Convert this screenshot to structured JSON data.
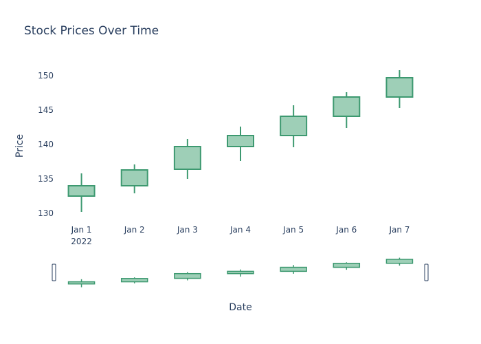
{
  "chart_data": {
    "type": "candlestick",
    "title": "Stock Prices Over Time",
    "xlabel": "Date",
    "ylabel": "Price",
    "ylim": [
      129,
      153
    ],
    "yticks": [
      130,
      135,
      140,
      145,
      150
    ],
    "x_tick_labels": [
      "Jan 1",
      "Jan 2",
      "Jan 3",
      "Jan 4",
      "Jan 5",
      "Jan 6",
      "Jan 7"
    ],
    "x_year_label": "2022",
    "grid": false,
    "range_slider": true,
    "colors": {
      "increasing_line": "#3d9970",
      "increasing_fill": "#9ecfb7",
      "text": "#2a3f5f",
      "background": "#ffffff"
    },
    "series": [
      {
        "type": "ohlc",
        "points": [
          {
            "x": "2022-01-01",
            "open": 132.5,
            "high": 135.8,
            "low": 130.2,
            "close": 134.0
          },
          {
            "x": "2022-01-02",
            "open": 134.0,
            "high": 137.1,
            "low": 132.9,
            "close": 136.3
          },
          {
            "x": "2022-01-03",
            "open": 136.4,
            "high": 140.8,
            "low": 135.0,
            "close": 139.7
          },
          {
            "x": "2022-01-04",
            "open": 139.7,
            "high": 142.6,
            "low": 137.6,
            "close": 141.3
          },
          {
            "x": "2022-01-05",
            "open": 141.3,
            "high": 145.7,
            "low": 139.6,
            "close": 144.1
          },
          {
            "x": "2022-01-06",
            "open": 144.1,
            "high": 147.6,
            "low": 142.4,
            "close": 146.9
          },
          {
            "x": "2022-01-07",
            "open": 146.9,
            "high": 150.8,
            "low": 145.3,
            "close": 149.7
          }
        ]
      }
    ]
  }
}
